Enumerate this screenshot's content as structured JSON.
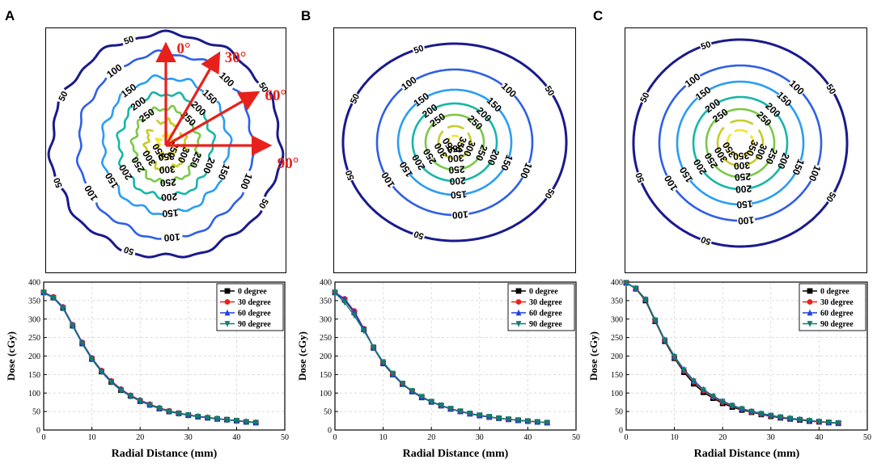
{
  "figure": {
    "panel_labels": [
      "A",
      "B",
      "C"
    ]
  },
  "chart_data": [
    {
      "panel": "A",
      "type": "contour",
      "contour_levels": [
        50,
        100,
        150,
        200,
        250,
        300,
        350
      ],
      "contour_colors": [
        "#1a1a8c",
        "#2f5fe6",
        "#2a9df4",
        "#17b6a8",
        "#7cc84a",
        "#c8cc2a",
        "#f5e52a"
      ],
      "angle_arrows": [
        {
          "label": "0°",
          "angle": 0
        },
        {
          "label": "30°",
          "angle": 30
        },
        {
          "label": "60°",
          "angle": 60
        },
        {
          "label": "90°",
          "angle": 90
        }
      ],
      "arrow_color": "#e8201c"
    },
    {
      "panel": "B",
      "type": "contour",
      "contour_levels": [
        50,
        100,
        150,
        200,
        250,
        300,
        350
      ],
      "contour_colors": [
        "#1a1a8c",
        "#2f5fe6",
        "#2a9df4",
        "#17b6a8",
        "#7cc84a",
        "#c8cc2a",
        "#f5e52a"
      ]
    },
    {
      "panel": "C",
      "type": "contour",
      "contour_levels": [
        50,
        100,
        150,
        200,
        250,
        300,
        350
      ],
      "contour_colors": [
        "#1a1a8c",
        "#2f5fe6",
        "#2a9df4",
        "#17b6a8",
        "#7cc84a",
        "#c8cc2a",
        "#f5e52a"
      ]
    },
    {
      "panel": "A",
      "type": "line",
      "xlabel": "Radial Distance (mm)",
      "ylabel": "Dose (cGy)",
      "xlim": [
        0,
        50
      ],
      "ylim": [
        0,
        400
      ],
      "xticks": [
        0,
        10,
        20,
        30,
        40,
        50
      ],
      "yticks": [
        0,
        50,
        100,
        150,
        200,
        250,
        300,
        350,
        400
      ],
      "x": [
        0,
        2,
        4,
        6,
        8,
        10,
        12,
        14,
        16,
        18,
        20,
        22,
        24,
        26,
        28,
        30,
        32,
        34,
        36,
        38,
        40,
        42,
        44
      ],
      "series": [
        {
          "name": "0 degree",
          "color": "#000000",
          "marker": "square",
          "values": [
            372,
            358,
            330,
            282,
            234,
            192,
            158,
            130,
            108,
            92,
            78,
            68,
            58,
            50,
            45,
            40,
            36,
            33,
            30,
            28,
            25,
            22,
            20
          ]
        },
        {
          "name": "30 degree",
          "color": "#e8201c",
          "marker": "circle",
          "values": [
            373,
            360,
            333,
            285,
            237,
            195,
            161,
            133,
            111,
            94,
            81,
            70,
            60,
            52,
            46,
            41,
            37,
            34,
            31,
            28,
            26,
            23,
            21
          ]
        },
        {
          "name": "60 degree",
          "color": "#1f3fe0",
          "marker": "triangle-up",
          "values": [
            372,
            359,
            332,
            284,
            236,
            194,
            160,
            132,
            110,
            93,
            80,
            69,
            59,
            51,
            45,
            41,
            37,
            34,
            31,
            28,
            25,
            23,
            20
          ]
        },
        {
          "name": "90 degree",
          "color": "#0f7f6f",
          "marker": "triangle-down",
          "values": [
            371,
            357,
            329,
            281,
            233,
            191,
            157,
            129,
            107,
            91,
            78,
            67,
            58,
            50,
            44,
            40,
            36,
            33,
            30,
            27,
            25,
            22,
            20
          ]
        }
      ]
    },
    {
      "panel": "B",
      "type": "line",
      "xlabel": "Radial Distance (mm)",
      "ylabel": "Dose (cGy)",
      "xlim": [
        0,
        50
      ],
      "ylim": [
        0,
        400
      ],
      "xticks": [
        0,
        10,
        20,
        30,
        40,
        50
      ],
      "yticks": [
        0,
        50,
        100,
        150,
        200,
        250,
        300,
        350,
        400
      ],
      "x": [
        0,
        2,
        4,
        6,
        8,
        10,
        12,
        14,
        16,
        18,
        20,
        22,
        24,
        26,
        28,
        30,
        32,
        34,
        36,
        38,
        40,
        42,
        44
      ],
      "series": [
        {
          "name": "0 degree",
          "color": "#000000",
          "marker": "square",
          "values": [
            372,
            352,
            318,
            272,
            222,
            180,
            150,
            124,
            104,
            88,
            76,
            66,
            57,
            50,
            44,
            39,
            35,
            32,
            29,
            26,
            24,
            22,
            20
          ]
        },
        {
          "name": "30 degree",
          "color": "#e8201c",
          "marker": "circle",
          "values": [
            373,
            355,
            322,
            274,
            224,
            182,
            152,
            125,
            105,
            89,
            77,
            66,
            58,
            50,
            44,
            39,
            35,
            32,
            29,
            26,
            24,
            22,
            20
          ]
        },
        {
          "name": "60 degree",
          "color": "#1f3fe0",
          "marker": "triangle-up",
          "values": [
            372,
            354,
            320,
            273,
            223,
            181,
            151,
            125,
            105,
            89,
            76,
            66,
            57,
            50,
            44,
            39,
            35,
            32,
            29,
            26,
            24,
            22,
            20
          ]
        },
        {
          "name": "90 degree",
          "color": "#0f7f6f",
          "marker": "triangle-down",
          "values": [
            371,
            345,
            310,
            268,
            224,
            184,
            153,
            126,
            106,
            90,
            77,
            67,
            58,
            51,
            45,
            40,
            36,
            32,
            29,
            27,
            24,
            22,
            20
          ]
        }
      ]
    },
    {
      "panel": "C",
      "type": "line",
      "xlabel": "Radial Distance (mm)",
      "ylabel": "Dose (cGy)",
      "xlim": [
        0,
        50
      ],
      "ylim": [
        0,
        400
      ],
      "xticks": [
        0,
        10,
        20,
        30,
        40,
        50
      ],
      "yticks": [
        0,
        50,
        100,
        150,
        200,
        250,
        300,
        350,
        400
      ],
      "x": [
        0,
        2,
        4,
        6,
        8,
        10,
        12,
        14,
        16,
        18,
        20,
        22,
        24,
        26,
        28,
        30,
        32,
        34,
        36,
        38,
        40,
        42,
        44
      ],
      "series": [
        {
          "name": "0 degree",
          "color": "#000000",
          "marker": "square",
          "values": [
            398,
            382,
            350,
            294,
            240,
            194,
            156,
            125,
            102,
            86,
            72,
            62,
            54,
            48,
            42,
            37,
            33,
            30,
            27,
            24,
            22,
            20,
            18
          ]
        },
        {
          "name": "30 degree",
          "color": "#e8201c",
          "marker": "circle",
          "values": [
            398,
            383,
            352,
            296,
            242,
            196,
            160,
            130,
            106,
            89,
            75,
            65,
            56,
            49,
            43,
            38,
            34,
            31,
            28,
            25,
            22,
            20,
            18
          ]
        },
        {
          "name": "60 degree",
          "color": "#1f3fe0",
          "marker": "triangle-up",
          "values": [
            398,
            384,
            354,
            298,
            244,
            200,
            164,
            134,
            110,
            92,
            78,
            67,
            58,
            51,
            45,
            40,
            35,
            32,
            29,
            26,
            23,
            21,
            19
          ]
        },
        {
          "name": "90 degree",
          "color": "#0f7f6f",
          "marker": "triangle-down",
          "values": [
            397,
            383,
            353,
            297,
            243,
            198,
            162,
            132,
            108,
            91,
            77,
            66,
            57,
            50,
            44,
            39,
            35,
            31,
            28,
            25,
            23,
            21,
            19
          ]
        }
      ]
    }
  ]
}
